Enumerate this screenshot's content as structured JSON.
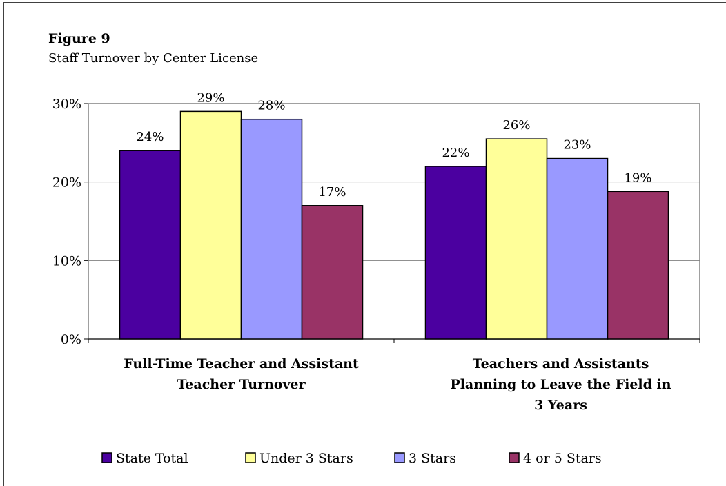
{
  "chart_data": {
    "type": "bar",
    "title": "Figure 9",
    "subtitle": "Staff Turnover by Center License",
    "categories": [
      "Full-Time Teacher and Assistant Teacher Turnover",
      "Teachers and Assistants Planning to Leave the Field in 3 Years"
    ],
    "series": [
      {
        "name": "State Total",
        "color": "#4B00A0",
        "values": [
          24,
          22
        ],
        "value_labels": [
          "24%",
          "22%"
        ]
      },
      {
        "name": "Under 3 Stars",
        "color": "#FFFF99",
        "values": [
          29,
          25.5
        ],
        "value_labels": [
          "29%",
          "26%"
        ]
      },
      {
        "name": "3 Stars",
        "color": "#9999FF",
        "values": [
          28,
          23
        ],
        "value_labels": [
          "28%",
          "23%"
        ]
      },
      {
        "name": "4 or 5 Stars",
        "color": "#993366",
        "values": [
          17,
          18.8
        ],
        "value_labels": [
          "17%",
          "19%"
        ]
      }
    ],
    "ylim": [
      0,
      30
    ],
    "yticks": [
      {
        "value": 0,
        "label": "0%"
      },
      {
        "value": 10,
        "label": "10%"
      },
      {
        "value": 20,
        "label": "20%"
      },
      {
        "value": 30,
        "label": "30%"
      }
    ],
    "grid": true,
    "legend": "bottom"
  }
}
